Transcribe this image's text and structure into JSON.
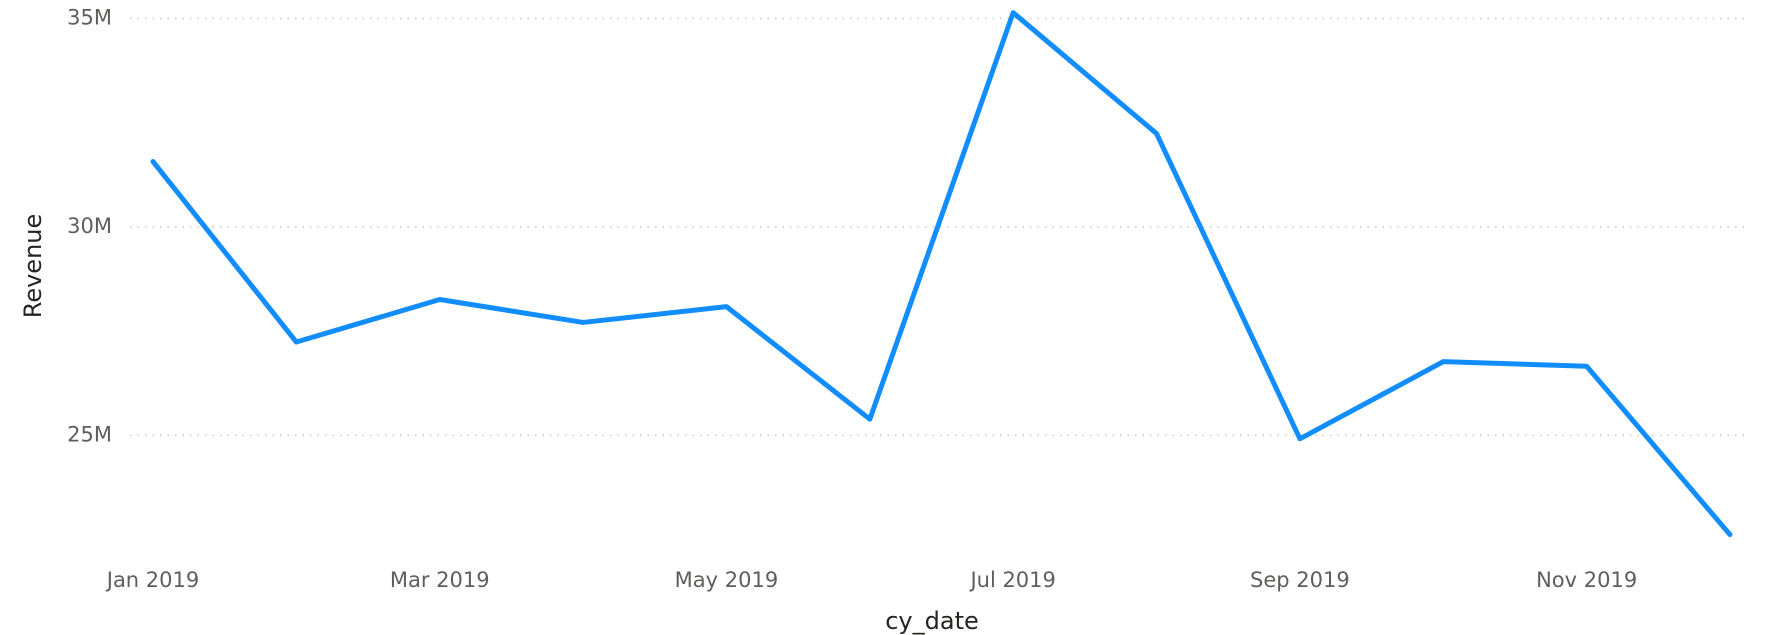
{
  "chart_data": {
    "type": "line",
    "x_label": "cy_date",
    "y_label": "Revenue",
    "categories": [
      "Jan 2019",
      null,
      "Mar 2019",
      null,
      "May 2019",
      null,
      "Jul 2019",
      null,
      "Sep 2019",
      null,
      "Nov 2019",
      null
    ],
    "series": [
      {
        "name": "Revenue",
        "color": "#118DFF",
        "values": [
          31570000,
          27240000,
          28260000,
          27710000,
          28090000,
          25390000,
          35140000,
          32240000,
          24920000,
          26770000,
          26660000,
          22620000
        ]
      }
    ],
    "ylim": [
      22300000,
      35300000
    ],
    "yticks": [
      {
        "value": 25000000,
        "label": "25M"
      },
      {
        "value": 30000000,
        "label": "30M"
      },
      {
        "value": 35000000,
        "label": "35M"
      }
    ],
    "grid": true
  }
}
